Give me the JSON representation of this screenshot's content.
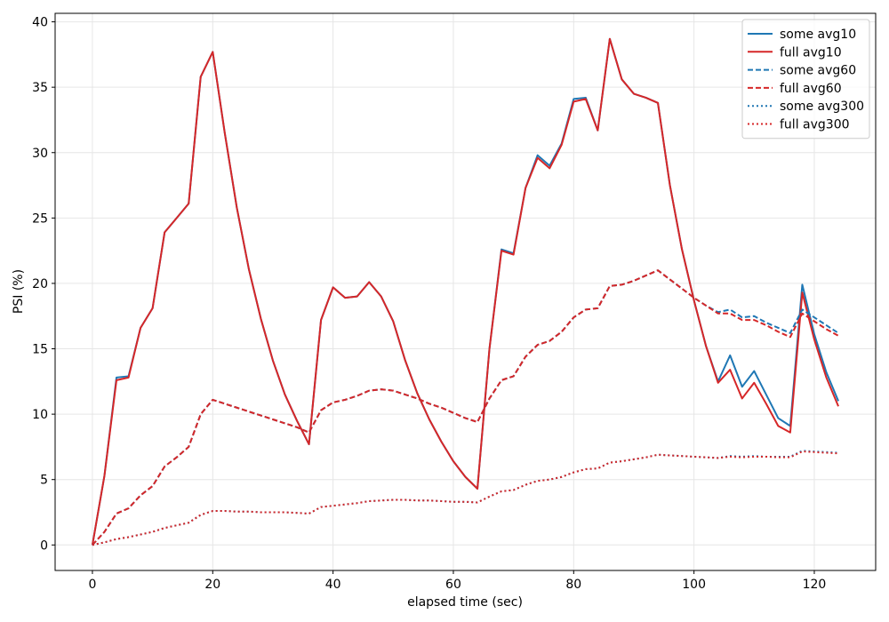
{
  "chart_data": {
    "type": "line",
    "x_label": "elapsed time (sec)",
    "y_label": "PSI (%)",
    "x": [
      0,
      2,
      4,
      6,
      8,
      10,
      12,
      14,
      16,
      18,
      20,
      22,
      24,
      26,
      28,
      30,
      32,
      34,
      36,
      38,
      40,
      42,
      44,
      46,
      48,
      50,
      52,
      54,
      56,
      58,
      60,
      62,
      64,
      66,
      68,
      70,
      72,
      74,
      76,
      78,
      80,
      82,
      84,
      86,
      88,
      90,
      92,
      94,
      96,
      98,
      100,
      102,
      104,
      106,
      108,
      110,
      112,
      114,
      116,
      118,
      120,
      122,
      124
    ],
    "xlim": [
      -6.2,
      130.2
    ],
    "xticks": [
      0,
      20,
      40,
      60,
      80,
      100,
      120
    ],
    "ylim": [
      -1.95,
      40.65
    ],
    "yticks": [
      0,
      5,
      10,
      15,
      20,
      25,
      30,
      35,
      40
    ],
    "grid": true,
    "legend": "upper-right",
    "series": [
      {
        "name": "some avg10",
        "color": "#1f77b4",
        "linestyle": "solid",
        "values": [
          0,
          5.3,
          12.8,
          12.9,
          16.6,
          18.1,
          23.9,
          25,
          26.1,
          35.8,
          37.7,
          31.5,
          25.8,
          21.1,
          17.3,
          14.1,
          11.5,
          9.5,
          7.7,
          17.2,
          19.7,
          18.9,
          19.0,
          20.1,
          19.0,
          17.1,
          14.1,
          11.6,
          9.6,
          7.9,
          6.4,
          5.2,
          4.3,
          15.0,
          22.6,
          22.3,
          27.3,
          29.8,
          29.0,
          30.7,
          34.1,
          34.2,
          31.7,
          38.7,
          35.6,
          34.5,
          34.2,
          33.8,
          27.5,
          22.6,
          18.7,
          15.2,
          12.5,
          14.5,
          12.1,
          13.3,
          11.5,
          9.7,
          9.1,
          19.9,
          16.1,
          13.2,
          11.0
        ]
      },
      {
        "name": "full avg10",
        "color": "#d62728",
        "linestyle": "solid",
        "values": [
          0,
          5.3,
          12.6,
          12.8,
          16.6,
          18.1,
          23.9,
          25,
          26.1,
          35.8,
          37.7,
          31.5,
          25.8,
          21.1,
          17.3,
          14.1,
          11.5,
          9.5,
          7.7,
          17.2,
          19.7,
          18.9,
          19.0,
          20.1,
          19.0,
          17.1,
          14.1,
          11.6,
          9.6,
          7.9,
          6.4,
          5.2,
          4.3,
          15.0,
          22.5,
          22.2,
          27.3,
          29.6,
          28.8,
          30.6,
          33.9,
          34.1,
          31.7,
          38.7,
          35.6,
          34.5,
          34.2,
          33.8,
          27.5,
          22.6,
          18.7,
          15.2,
          12.4,
          13.4,
          11.2,
          12.4,
          10.8,
          9.1,
          8.6,
          19.3,
          15.7,
          12.8,
          10.6
        ]
      },
      {
        "name": "some avg60",
        "color": "#1f77b4",
        "linestyle": "dashed",
        "values": [
          0,
          1.0,
          2.4,
          2.8,
          3.8,
          4.5,
          6.0,
          6.7,
          7.5,
          10.0,
          11.1,
          10.8,
          10.5,
          10.2,
          9.9,
          9.6,
          9.3,
          9.0,
          8.6,
          10.3,
          10.9,
          11.1,
          11.4,
          11.8,
          11.9,
          11.8,
          11.5,
          11.2,
          10.8,
          10.5,
          10.1,
          9.7,
          9.4,
          11.2,
          12.6,
          12.9,
          14.4,
          15.3,
          15.6,
          16.3,
          17.4,
          18.0,
          18.1,
          19.8,
          19.9,
          20.2,
          20.6,
          21.0,
          20.3,
          19.6,
          18.9,
          18.3,
          17.8,
          18.0,
          17.4,
          17.5,
          17.0,
          16.6,
          16.2,
          18.0,
          17.4,
          16.8,
          16.2
        ]
      },
      {
        "name": "full avg60",
        "color": "#d62728",
        "linestyle": "dashed",
        "values": [
          0,
          1.0,
          2.4,
          2.8,
          3.8,
          4.5,
          6.0,
          6.7,
          7.5,
          10.0,
          11.1,
          10.8,
          10.5,
          10.2,
          9.9,
          9.6,
          9.3,
          9.0,
          8.6,
          10.3,
          10.9,
          11.1,
          11.4,
          11.8,
          11.9,
          11.8,
          11.5,
          11.2,
          10.8,
          10.5,
          10.1,
          9.7,
          9.4,
          11.2,
          12.6,
          12.9,
          14.4,
          15.3,
          15.6,
          16.3,
          17.4,
          18.0,
          18.1,
          19.8,
          19.9,
          20.2,
          20.6,
          21.0,
          20.3,
          19.6,
          18.9,
          18.3,
          17.7,
          17.7,
          17.2,
          17.2,
          16.8,
          16.3,
          15.9,
          17.7,
          17.1,
          16.5,
          16.0
        ]
      },
      {
        "name": "some avg300",
        "color": "#1f77b4",
        "linestyle": "dotted",
        "values": [
          0,
          0.2,
          0.45,
          0.6,
          0.8,
          1.0,
          1.3,
          1.5,
          1.7,
          2.3,
          2.6,
          2.6,
          2.55,
          2.55,
          2.5,
          2.5,
          2.5,
          2.45,
          2.4,
          2.9,
          3.0,
          3.1,
          3.2,
          3.35,
          3.4,
          3.45,
          3.45,
          3.4,
          3.4,
          3.35,
          3.3,
          3.3,
          3.25,
          3.7,
          4.1,
          4.2,
          4.6,
          4.9,
          5.0,
          5.2,
          5.55,
          5.8,
          5.85,
          6.3,
          6.4,
          6.55,
          6.7,
          6.9,
          6.85,
          6.8,
          6.75,
          6.7,
          6.65,
          6.8,
          6.75,
          6.8,
          6.75,
          6.75,
          6.75,
          7.2,
          7.15,
          7.1,
          7.05
        ]
      },
      {
        "name": "full avg300",
        "color": "#d62728",
        "linestyle": "dotted",
        "values": [
          0,
          0.2,
          0.45,
          0.6,
          0.8,
          1.0,
          1.3,
          1.5,
          1.7,
          2.3,
          2.6,
          2.6,
          2.55,
          2.55,
          2.5,
          2.5,
          2.5,
          2.45,
          2.4,
          2.9,
          3.0,
          3.1,
          3.2,
          3.35,
          3.4,
          3.45,
          3.45,
          3.4,
          3.4,
          3.35,
          3.3,
          3.3,
          3.25,
          3.7,
          4.1,
          4.2,
          4.6,
          4.9,
          5.0,
          5.2,
          5.55,
          5.8,
          5.85,
          6.3,
          6.4,
          6.55,
          6.7,
          6.9,
          6.85,
          6.8,
          6.75,
          6.7,
          6.65,
          6.75,
          6.7,
          6.75,
          6.75,
          6.7,
          6.7,
          7.15,
          7.1,
          7.05,
          7.0
        ]
      }
    ]
  }
}
